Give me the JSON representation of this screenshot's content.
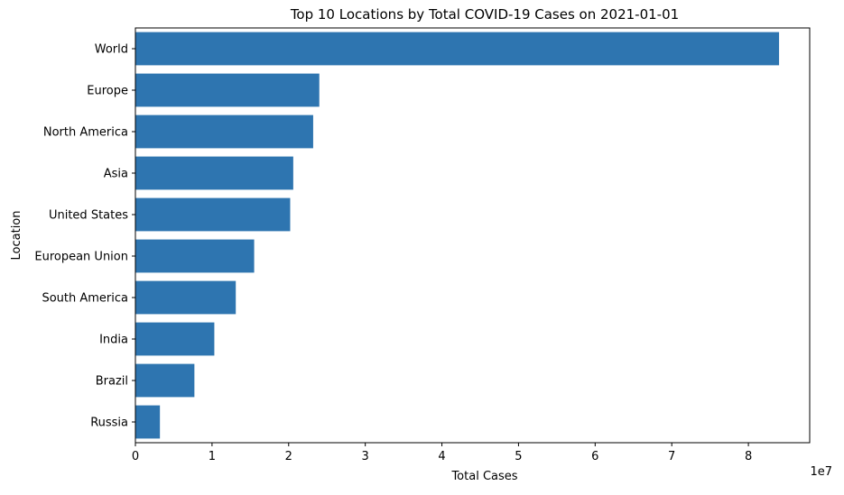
{
  "chart_data": {
    "type": "bar",
    "orientation": "horizontal",
    "title": "Top 10 Locations by Total COVID-19 Cases on 2021-01-01",
    "xlabel": "Total Cases",
    "ylabel": "Location",
    "x_scale_note": "1e7",
    "categories": [
      "World",
      "Europe",
      "North America",
      "Asia",
      "United States",
      "European Union",
      "South America",
      "India",
      "Brazil",
      "Russia"
    ],
    "values": [
      84000000,
      24000000,
      23200000,
      20600000,
      20200000,
      15500000,
      13100000,
      10300000,
      7700000,
      3200000
    ],
    "xlim": [
      0,
      88000000
    ],
    "xticks": [
      0,
      10000000,
      20000000,
      30000000,
      40000000,
      50000000,
      60000000,
      70000000,
      80000000
    ],
    "xtick_labels": [
      "0",
      "1",
      "2",
      "3",
      "4",
      "5",
      "6",
      "7",
      "8"
    ],
    "bar_color": "#2e75b0",
    "grid": false,
    "legend": "none"
  }
}
